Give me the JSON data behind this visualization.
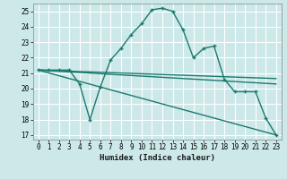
{
  "xlabel": "Humidex (Indice chaleur)",
  "background_color": "#cce8e8",
  "grid_color": "#ffffff",
  "line_color": "#1a7a6e",
  "xlim": [
    -0.5,
    23.5
  ],
  "ylim": [
    16.7,
    25.5
  ],
  "xticks": [
    0,
    1,
    2,
    3,
    4,
    5,
    6,
    7,
    8,
    9,
    10,
    11,
    12,
    13,
    14,
    15,
    16,
    17,
    18,
    19,
    20,
    21,
    22,
    23
  ],
  "yticks": [
    17,
    18,
    19,
    20,
    21,
    22,
    23,
    24,
    25
  ],
  "series1_x": [
    0,
    1,
    2,
    3,
    4,
    5,
    6,
    7,
    8,
    9,
    10,
    11,
    12,
    13,
    14,
    15,
    16,
    17,
    18,
    19,
    20,
    21,
    22,
    23
  ],
  "series1_y": [
    21.2,
    21.2,
    21.2,
    21.2,
    20.3,
    18.0,
    20.1,
    21.85,
    22.6,
    23.5,
    24.2,
    25.1,
    25.2,
    25.0,
    23.8,
    22.0,
    22.6,
    22.75,
    20.6,
    19.8,
    19.8,
    19.8,
    18.1,
    17.0
  ],
  "series2_x": [
    0,
    23
  ],
  "series2_y": [
    21.2,
    20.65
  ],
  "series3_x": [
    0,
    23
  ],
  "series3_y": [
    21.2,
    20.3
  ],
  "series4_x": [
    0,
    23
  ],
  "series4_y": [
    21.2,
    17.0
  ]
}
